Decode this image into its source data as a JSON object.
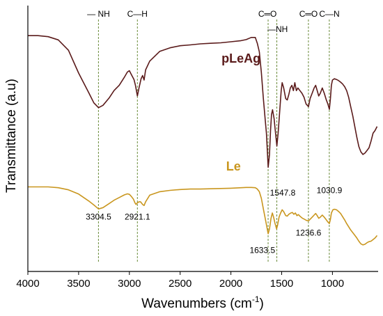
{
  "chart_data": {
    "type": "line",
    "xlabel": "Wavenumbers (cm",
    "xlabel_sup": "-1",
    "xlabel_end": ")",
    "ylabel": "Transmittance (a.u)",
    "xlim": [
      4000,
      550
    ],
    "x_reversed": true,
    "ylim": [
      0,
      1
    ],
    "y_ticks_shown": false,
    "x_ticks": [
      {
        "value": 4000,
        "label": "4000"
      },
      {
        "value": 3500,
        "label": "3500"
      },
      {
        "value": 3000,
        "label": "3000"
      },
      {
        "value": 2500,
        "label": "2500"
      },
      {
        "value": 2000,
        "label": "2000"
      },
      {
        "value": 1500,
        "label": "1500"
      },
      {
        "value": 1000,
        "label": "1000"
      }
    ],
    "series": [
      {
        "name": "pLeAg",
        "color": "#5a1a1a",
        "label_x": 1900,
        "label_y": 0.785,
        "points": [
          [
            4000,
            0.887
          ],
          [
            3900,
            0.887
          ],
          [
            3800,
            0.883
          ],
          [
            3700,
            0.871
          ],
          [
            3600,
            0.832
          ],
          [
            3500,
            0.746
          ],
          [
            3400,
            0.672
          ],
          [
            3350,
            0.634
          ],
          [
            3304,
            0.616
          ],
          [
            3260,
            0.625
          ],
          [
            3200,
            0.652
          ],
          [
            3150,
            0.681
          ],
          [
            3100,
            0.7
          ],
          [
            3050,
            0.73
          ],
          [
            3020,
            0.75
          ],
          [
            3000,
            0.755
          ],
          [
            2980,
            0.74
          ],
          [
            2955,
            0.722
          ],
          [
            2940,
            0.7
          ],
          [
            2921,
            0.66
          ],
          [
            2905,
            0.69
          ],
          [
            2885,
            0.725
          ],
          [
            2870,
            0.737
          ],
          [
            2855,
            0.72
          ],
          [
            2840,
            0.758
          ],
          [
            2800,
            0.791
          ],
          [
            2700,
            0.828
          ],
          [
            2600,
            0.841
          ],
          [
            2500,
            0.849
          ],
          [
            2400,
            0.852
          ],
          [
            2300,
            0.856
          ],
          [
            2200,
            0.858
          ],
          [
            2100,
            0.86
          ],
          [
            2000,
            0.864
          ],
          [
            1900,
            0.868
          ],
          [
            1850,
            0.872
          ],
          [
            1800,
            0.88
          ],
          [
            1760,
            0.88
          ],
          [
            1740,
            0.858
          ],
          [
            1720,
            0.826
          ],
          [
            1700,
            0.749
          ],
          [
            1680,
            0.65
          ],
          [
            1660,
            0.56
          ],
          [
            1650,
            0.52
          ],
          [
            1633,
            0.392
          ],
          [
            1620,
            0.44
          ],
          [
            1610,
            0.53
          ],
          [
            1600,
            0.59
          ],
          [
            1590,
            0.608
          ],
          [
            1575,
            0.575
          ],
          [
            1560,
            0.52
          ],
          [
            1547,
            0.472
          ],
          [
            1535,
            0.52
          ],
          [
            1520,
            0.6
          ],
          [
            1505,
            0.68
          ],
          [
            1495,
            0.71
          ],
          [
            1480,
            0.69
          ],
          [
            1460,
            0.65
          ],
          [
            1445,
            0.645
          ],
          [
            1430,
            0.665
          ],
          [
            1415,
            0.69
          ],
          [
            1400,
            0.7
          ],
          [
            1385,
            0.68
          ],
          [
            1370,
            0.71
          ],
          [
            1355,
            0.68
          ],
          [
            1340,
            0.69
          ],
          [
            1320,
            0.68
          ],
          [
            1300,
            0.67
          ],
          [
            1280,
            0.655
          ],
          [
            1260,
            0.63
          ],
          [
            1236,
            0.62
          ],
          [
            1220,
            0.65
          ],
          [
            1200,
            0.67
          ],
          [
            1180,
            0.69
          ],
          [
            1165,
            0.7
          ],
          [
            1150,
            0.68
          ],
          [
            1135,
            0.66
          ],
          [
            1120,
            0.67
          ],
          [
            1100,
            0.69
          ],
          [
            1080,
            0.67
          ],
          [
            1060,
            0.645
          ],
          [
            1045,
            0.63
          ],
          [
            1030,
            0.61
          ],
          [
            1020,
            0.65
          ],
          [
            1010,
            0.7
          ],
          [
            1000,
            0.72
          ],
          [
            980,
            0.725
          ],
          [
            960,
            0.722
          ],
          [
            940,
            0.718
          ],
          [
            920,
            0.712
          ],
          [
            900,
            0.705
          ],
          [
            880,
            0.695
          ],
          [
            860,
            0.68
          ],
          [
            840,
            0.655
          ],
          [
            820,
            0.62
          ],
          [
            800,
            0.585
          ],
          [
            780,
            0.545
          ],
          [
            760,
            0.505
          ],
          [
            740,
            0.47
          ],
          [
            720,
            0.45
          ],
          [
            700,
            0.44
          ],
          [
            680,
            0.445
          ],
          [
            660,
            0.455
          ],
          [
            640,
            0.465
          ],
          [
            620,
            0.49
          ],
          [
            600,
            0.52
          ],
          [
            580,
            0.53
          ],
          [
            560,
            0.545
          ]
        ]
      },
      {
        "name": "Le",
        "color": "#c9961e",
        "label_x": 1975,
        "label_y": 0.38,
        "points": [
          [
            4000,
            0.318
          ],
          [
            3900,
            0.318
          ],
          [
            3800,
            0.318
          ],
          [
            3700,
            0.315
          ],
          [
            3600,
            0.307
          ],
          [
            3500,
            0.291
          ],
          [
            3400,
            0.265
          ],
          [
            3350,
            0.25
          ],
          [
            3304,
            0.235
          ],
          [
            3260,
            0.24
          ],
          [
            3200,
            0.255
          ],
          [
            3150,
            0.268
          ],
          [
            3100,
            0.278
          ],
          [
            3050,
            0.288
          ],
          [
            3020,
            0.292
          ],
          [
            3000,
            0.29
          ],
          [
            2980,
            0.282
          ],
          [
            2960,
            0.272
          ],
          [
            2945,
            0.258
          ],
          [
            2935,
            0.252
          ],
          [
            2921,
            0.258
          ],
          [
            2905,
            0.262
          ],
          [
            2890,
            0.262
          ],
          [
            2870,
            0.252
          ],
          [
            2855,
            0.248
          ],
          [
            2840,
            0.262
          ],
          [
            2800,
            0.287
          ],
          [
            2700,
            0.3
          ],
          [
            2600,
            0.305
          ],
          [
            2500,
            0.308
          ],
          [
            2400,
            0.31
          ],
          [
            2300,
            0.31
          ],
          [
            2200,
            0.311
          ],
          [
            2100,
            0.312
          ],
          [
            2000,
            0.313
          ],
          [
            1900,
            0.315
          ],
          [
            1850,
            0.316
          ],
          [
            1800,
            0.316
          ],
          [
            1760,
            0.315
          ],
          [
            1740,
            0.31
          ],
          [
            1720,
            0.3
          ],
          [
            1700,
            0.275
          ],
          [
            1680,
            0.235
          ],
          [
            1660,
            0.195
          ],
          [
            1645,
            0.165
          ],
          [
            1633,
            0.142
          ],
          [
            1620,
            0.16
          ],
          [
            1605,
            0.2
          ],
          [
            1592,
            0.22
          ],
          [
            1580,
            0.205
          ],
          [
            1565,
            0.18
          ],
          [
            1550,
            0.16
          ],
          [
            1540,
            0.175
          ],
          [
            1525,
            0.205
          ],
          [
            1510,
            0.22
          ],
          [
            1495,
            0.232
          ],
          [
            1480,
            0.225
          ],
          [
            1460,
            0.21
          ],
          [
            1445,
            0.208
          ],
          [
            1430,
            0.215
          ],
          [
            1410,
            0.22
          ],
          [
            1395,
            0.222
          ],
          [
            1380,
            0.215
          ],
          [
            1365,
            0.22
          ],
          [
            1350,
            0.21
          ],
          [
            1335,
            0.214
          ],
          [
            1315,
            0.206
          ],
          [
            1295,
            0.2
          ],
          [
            1275,
            0.196
          ],
          [
            1255,
            0.192
          ],
          [
            1236,
            0.19
          ],
          [
            1220,
            0.196
          ],
          [
            1200,
            0.204
          ],
          [
            1180,
            0.212
          ],
          [
            1165,
            0.218
          ],
          [
            1150,
            0.21
          ],
          [
            1135,
            0.2
          ],
          [
            1120,
            0.204
          ],
          [
            1100,
            0.212
          ],
          [
            1080,
            0.204
          ],
          [
            1060,
            0.194
          ],
          [
            1045,
            0.186
          ],
          [
            1030,
            0.18
          ],
          [
            1020,
            0.196
          ],
          [
            1010,
            0.22
          ],
          [
            995,
            0.232
          ],
          [
            980,
            0.234
          ],
          [
            960,
            0.232
          ],
          [
            940,
            0.226
          ],
          [
            920,
            0.218
          ],
          [
            900,
            0.206
          ],
          [
            880,
            0.194
          ],
          [
            860,
            0.18
          ],
          [
            840,
            0.168
          ],
          [
            820,
            0.156
          ],
          [
            800,
            0.146
          ],
          [
            780,
            0.136
          ],
          [
            760,
            0.126
          ],
          [
            740,
            0.114
          ],
          [
            720,
            0.104
          ],
          [
            700,
            0.1
          ],
          [
            680,
            0.102
          ],
          [
            660,
            0.108
          ],
          [
            640,
            0.112
          ],
          [
            620,
            0.114
          ],
          [
            600,
            0.12
          ],
          [
            580,
            0.126
          ],
          [
            560,
            0.135
          ]
        ]
      }
    ],
    "reference_lines": [
      {
        "x": 3304.5,
        "bond": "— NH",
        "bond_x": 3304,
        "value_label": "3304.5",
        "value_label_x": 3304,
        "value_y": 0.195
      },
      {
        "x": 2921.1,
        "bond": "C—H",
        "bond_x": 2921,
        "value_label": "2921.1",
        "value_label_x": 2921,
        "value_y": 0.195
      },
      {
        "x": 1633.5,
        "bond": "C═O",
        "bond_x": 1640,
        "value_label": "1633.5",
        "value_label_x": 1690,
        "value_y": 0.07
      },
      {
        "x": 1547.8,
        "bond": "—NH",
        "bond_x": 1540,
        "value_label": "1547.8",
        "value_label_x": 1490,
        "value_y": 0.285
      },
      {
        "x": 1236.6,
        "bond": "C═O",
        "bond_x": 1236,
        "value_label": "1236.6",
        "value_label_x": 1236,
        "value_y": 0.135
      },
      {
        "x": 1030.9,
        "bond": "C—N",
        "bond_x": 1030,
        "value_label": "1030.9",
        "value_label_x": 1030,
        "value_y": 0.295
      }
    ],
    "colors": {
      "reference_line": "#6a8a3a",
      "axis": "#000000"
    }
  }
}
